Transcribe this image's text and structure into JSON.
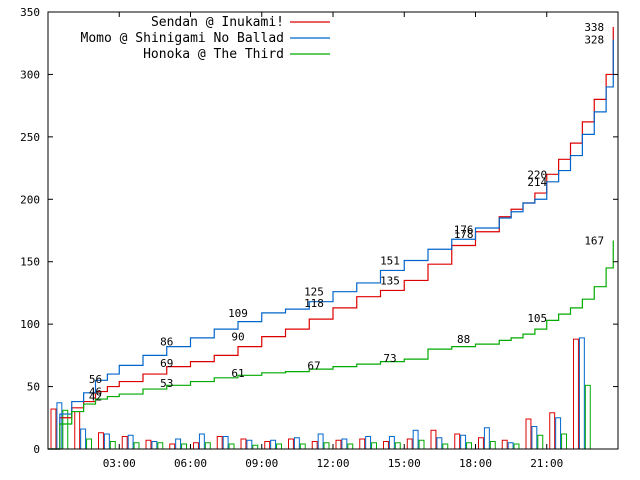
{
  "chart_data": {
    "type": "line",
    "title": "",
    "xlabel": "",
    "ylabel": "",
    "xlim": [
      0,
      24
    ],
    "ylim": [
      0,
      350
    ],
    "grid": false,
    "legend_position": "top-right",
    "y_ticks": [
      "0",
      "50",
      "100",
      "150",
      "200",
      "250",
      "300",
      "350"
    ],
    "y_tick_values": [
      0,
      50,
      100,
      150,
      200,
      250,
      300,
      350
    ],
    "x_ticks": [
      "03:00",
      "06:00",
      "09:00",
      "12:00",
      "15:00",
      "18:00",
      "21:00"
    ],
    "x_tick_values": [
      3,
      6,
      9,
      12,
      15,
      18,
      21
    ],
    "series": [
      {
        "name": "Sendan @ Inukami!",
        "color": "#dd0000",
        "x": [
          0,
          0.5,
          1,
          1.5,
          2,
          2.5,
          3,
          4,
          5,
          6,
          7,
          8,
          9,
          10,
          11,
          12,
          13,
          14,
          15,
          16,
          17,
          18,
          19,
          19.5,
          20,
          20.5,
          21,
          21.5,
          22,
          22.5,
          23,
          23.5,
          23.8
        ],
        "y": [
          0,
          25,
          33,
          38,
          46,
          50,
          54,
          60,
          66,
          70,
          75,
          82,
          90,
          96,
          104,
          113,
          122,
          127,
          135,
          148,
          163,
          174,
          186,
          192,
          197,
          205,
          220,
          232,
          245,
          262,
          280,
          300,
          338
        ]
      },
      {
        "name": "Momo @ Shinigami No Ballad",
        "color": "#0066cc",
        "x": [
          0,
          0.5,
          1,
          1.5,
          2,
          2.5,
          3,
          4,
          5,
          6,
          7,
          8,
          9,
          10,
          11,
          12,
          13,
          14,
          15,
          16,
          17,
          18,
          19,
          19.5,
          20,
          20.5,
          21,
          21.5,
          22,
          22.5,
          23,
          23.5,
          23.8
        ],
        "y": [
          0,
          28,
          38,
          45,
          55,
          60,
          67,
          75,
          82,
          89,
          96,
          102,
          109,
          112,
          118,
          126,
          133,
          143,
          151,
          160,
          168,
          177,
          185,
          190,
          197,
          200,
          214,
          223,
          235,
          252,
          270,
          290,
          328
        ]
      },
      {
        "name": "Honoka @ The Third",
        "color": "#00aa00",
        "x": [
          0,
          0.5,
          1,
          1.5,
          2,
          2.5,
          3,
          4,
          5,
          6,
          7,
          8,
          9,
          10,
          11,
          12,
          13,
          14,
          15,
          16,
          17,
          18,
          19,
          19.5,
          20,
          20.5,
          21,
          21.5,
          22,
          22.5,
          23,
          23.5,
          23.8
        ],
        "y": [
          0,
          20,
          30,
          36,
          40,
          42,
          44,
          48,
          51,
          54,
          57,
          59,
          61,
          62,
          64,
          66,
          68,
          70,
          72,
          80,
          82,
          84,
          87,
          89,
          92,
          96,
          103,
          108,
          113,
          120,
          130,
          145,
          167
        ]
      }
    ],
    "bars": {
      "x": [
        0.5,
        1.5,
        2.5,
        3.5,
        4.5,
        5.5,
        6.5,
        7.5,
        8.5,
        9.5,
        10.5,
        11.5,
        12.5,
        13.5,
        14.5,
        15.5,
        16.5,
        17.5,
        18.5,
        19.5,
        20.5,
        21.5,
        22.5,
        23.5
      ],
      "series": [
        {
          "name": "Sendan @ Inukami!",
          "values": [
            32,
            30,
            13,
            10,
            7,
            4,
            5,
            10,
            8,
            6,
            8,
            6,
            7,
            8,
            6,
            8,
            15,
            12,
            9,
            7,
            24,
            29,
            88,
            0
          ]
        },
        {
          "name": "Momo @ Shinigami No Ballad",
          "values": [
            37,
            16,
            12,
            11,
            6,
            8,
            12,
            10,
            7,
            7,
            9,
            12,
            8,
            10,
            10,
            15,
            9,
            11,
            17,
            5,
            18,
            25,
            89,
            0
          ]
        },
        {
          "name": "Honoka @ The Third",
          "values": [
            31,
            8,
            6,
            5,
            5,
            4,
            5,
            4,
            3,
            4,
            4,
            5,
            4,
            5,
            5,
            7,
            4,
            5,
            6,
            4,
            11,
            12,
            51,
            0
          ]
        }
      ]
    },
    "annotations": [
      {
        "text": "338",
        "x": 23.0,
        "y": 338,
        "color": "#000000"
      },
      {
        "text": "328",
        "x": 23.0,
        "y": 328,
        "color": "#000000"
      },
      {
        "text": "220",
        "x": 20.6,
        "y": 220,
        "color": "#000000"
      },
      {
        "text": "214",
        "x": 20.6,
        "y": 214,
        "color": "#000000"
      },
      {
        "text": "176",
        "x": 17.5,
        "y": 176,
        "color": "#000000"
      },
      {
        "text": "178",
        "x": 17.5,
        "y": 172,
        "color": "#000000"
      },
      {
        "text": "151",
        "x": 14.4,
        "y": 151,
        "color": "#000000"
      },
      {
        "text": "135",
        "x": 14.4,
        "y": 135,
        "color": "#000000"
      },
      {
        "text": "125",
        "x": 11.2,
        "y": 126,
        "color": "#000000"
      },
      {
        "text": "118",
        "x": 11.2,
        "y": 117,
        "color": "#000000"
      },
      {
        "text": "109",
        "x": 8.0,
        "y": 109,
        "color": "#000000"
      },
      {
        "text": "90",
        "x": 8.0,
        "y": 90,
        "color": "#000000"
      },
      {
        "text": "86",
        "x": 5.0,
        "y": 86,
        "color": "#000000"
      },
      {
        "text": "69",
        "x": 5.0,
        "y": 69,
        "color": "#000000"
      },
      {
        "text": "53",
        "x": 5.0,
        "y": 53,
        "color": "#000000"
      },
      {
        "text": "61",
        "x": 8.0,
        "y": 61,
        "color": "#000000"
      },
      {
        "text": "67",
        "x": 11.2,
        "y": 67,
        "color": "#000000"
      },
      {
        "text": "73",
        "x": 14.4,
        "y": 73,
        "color": "#000000"
      },
      {
        "text": "88",
        "x": 17.5,
        "y": 88,
        "color": "#000000"
      },
      {
        "text": "105",
        "x": 20.6,
        "y": 105,
        "color": "#000000"
      },
      {
        "text": "167",
        "x": 23.0,
        "y": 167,
        "color": "#000000"
      },
      {
        "text": "56",
        "x": 2.0,
        "y": 56,
        "color": "#000000"
      },
      {
        "text": "46",
        "x": 2.0,
        "y": 46,
        "color": "#000000"
      },
      {
        "text": "42",
        "x": 2.0,
        "y": 42,
        "color": "#000000"
      }
    ]
  }
}
